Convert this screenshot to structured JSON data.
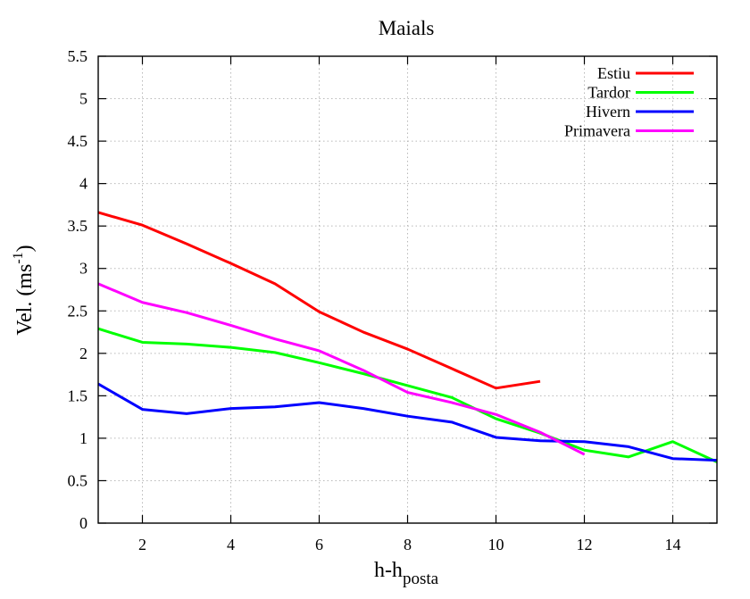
{
  "chart_data": {
    "type": "line",
    "title": "Maials",
    "xlabel": {
      "main": "h-h",
      "subscript": "posta"
    },
    "ylabel": {
      "main": "Vel. (ms",
      "superscript": "-1",
      "suffix": ")"
    },
    "xlim": [
      1,
      15
    ],
    "ylim": [
      0,
      5.5
    ],
    "xticks": [
      2,
      4,
      6,
      8,
      10,
      12,
      14
    ],
    "xtick_labels": [
      "2",
      "4",
      "6",
      "8",
      "10",
      "12",
      "14"
    ],
    "yticks": [
      0,
      0.5,
      1,
      1.5,
      2,
      2.5,
      3,
      3.5,
      4,
      4.5,
      5,
      5.5
    ],
    "ytick_labels": [
      "0",
      "0.5",
      "1",
      "1.5",
      "2",
      "2.5",
      "3",
      "3.5",
      "4",
      "4.5",
      "5",
      "5.5"
    ],
    "grid": true,
    "legend_position": "top-right",
    "series": [
      {
        "name": "Estiu",
        "color": "#ff0000",
        "x": [
          1,
          2,
          3,
          4,
          5,
          6,
          7,
          8,
          9,
          10,
          11
        ],
        "y": [
          3.66,
          3.51,
          3.29,
          3.06,
          2.82,
          2.49,
          2.25,
          2.05,
          1.82,
          1.59,
          1.67
        ]
      },
      {
        "name": "Tardor",
        "color": "#00ff00",
        "x": [
          1,
          2,
          3,
          4,
          5,
          6,
          7,
          8,
          9,
          10,
          11,
          12,
          13,
          14,
          15
        ],
        "y": [
          2.29,
          2.13,
          2.11,
          2.07,
          2.01,
          1.89,
          1.76,
          1.62,
          1.48,
          1.23,
          1.06,
          0.86,
          0.78,
          0.96,
          0.72
        ]
      },
      {
        "name": "Hivern",
        "color": "#0000ff",
        "x": [
          1,
          2,
          3,
          4,
          5,
          6,
          7,
          8,
          9,
          10,
          11,
          12,
          13,
          14,
          15
        ],
        "y": [
          1.64,
          1.34,
          1.29,
          1.35,
          1.37,
          1.42,
          1.35,
          1.26,
          1.19,
          1.01,
          0.97,
          0.96,
          0.9,
          0.76,
          0.74
        ]
      },
      {
        "name": "Primavera",
        "color": "#ff00ff",
        "x": [
          1,
          2,
          3,
          4,
          5,
          6,
          7,
          8,
          9,
          10,
          11,
          12
        ],
        "y": [
          2.82,
          2.6,
          2.48,
          2.33,
          2.17,
          2.03,
          1.8,
          1.54,
          1.42,
          1.28,
          1.07,
          0.81
        ]
      }
    ]
  }
}
